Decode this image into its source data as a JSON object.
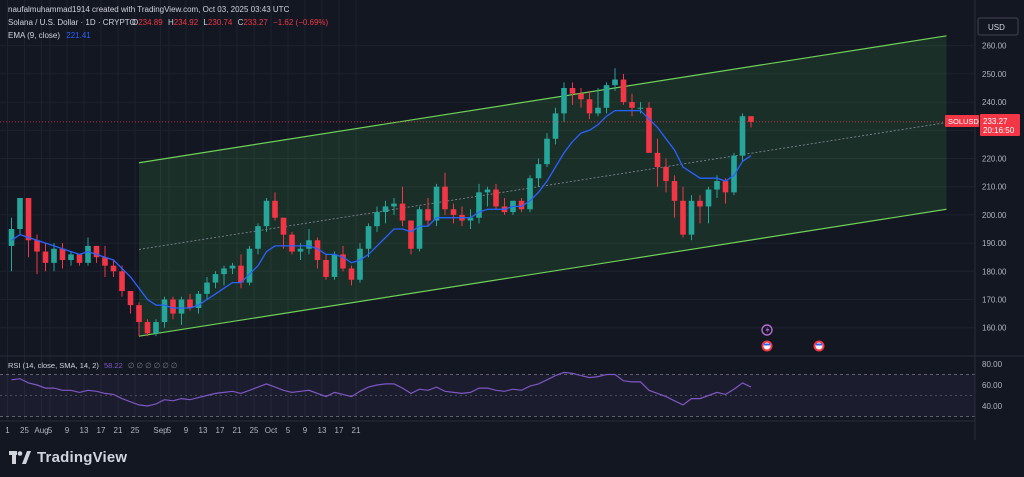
{
  "header": {
    "credit": "naufalmuhammad1914 created with TradingView.com, Oct 03, 2025 03:43 UTC",
    "symbol_line": "Solana / U.S. Dollar · 1D · CRYPTO",
    "ohlc": {
      "o_label": "O",
      "o": "234.89",
      "h_label": "H",
      "h": "234.92",
      "l_label": "L",
      "l": "230.74",
      "c_label": "C",
      "c": "233.27",
      "change": "−1.62 (−0.69%)"
    },
    "ema_label": "EMA (9, close)",
    "ema_value": "221.41",
    "currency": "USD"
  },
  "price_tag": {
    "symbol": "SOLUSD",
    "price": "233.27",
    "countdown": "20:16:50"
  },
  "rsi": {
    "label": "RSI (14, close, SMA, 14, 2)",
    "value": "58.22",
    "extra": "∅ ∅ ∅ ∅ ∅ ∅",
    "levels": [
      "80.00",
      "60.00",
      "40.00"
    ]
  },
  "footer": {
    "brand": "TradingView"
  },
  "colors": {
    "up": "#26a69a",
    "down": "#f23645",
    "ema": "#2962ff",
    "channel": "#6fd158",
    "rsi": "#7e57c2"
  },
  "chart_data": {
    "type": "candlestick",
    "y_ticks": [
      "260.00",
      "250.00",
      "240.00",
      "230.00",
      "220.00",
      "210.00",
      "200.00",
      "190.00",
      "180.00",
      "170.00",
      "160.00"
    ],
    "ylim": [
      152,
      264
    ],
    "x_ticks": [
      {
        "i": 0,
        "label": "1"
      },
      {
        "i": 2,
        "label": "25"
      },
      {
        "i": 4,
        "label": "Aug"
      },
      {
        "i": 5,
        "label": "5"
      },
      {
        "i": 7,
        "label": "9"
      },
      {
        "i": 9,
        "label": "13"
      },
      {
        "i": 11,
        "label": "17"
      },
      {
        "i": 13,
        "label": "21"
      },
      {
        "i": 15,
        "label": "25"
      },
      {
        "i": 18,
        "label": "Sep"
      },
      {
        "i": 19,
        "label": "5"
      },
      {
        "i": 21,
        "label": "9"
      },
      {
        "i": 23,
        "label": "13"
      },
      {
        "i": 25,
        "label": "17"
      },
      {
        "i": 27,
        "label": "21"
      },
      {
        "i": 29,
        "label": "25"
      },
      {
        "i": 31,
        "label": "Oct"
      },
      {
        "i": 33,
        "label": "5"
      },
      {
        "i": 35,
        "label": "9"
      },
      {
        "i": 37,
        "label": "13"
      },
      {
        "i": 39,
        "label": "17"
      },
      {
        "i": 41,
        "label": "21"
      }
    ],
    "candles": [
      {
        "o": 189,
        "h": 199,
        "l": 180,
        "c": 195
      },
      {
        "o": 195,
        "h": 206,
        "l": 193,
        "c": 206
      },
      {
        "o": 206,
        "h": 206,
        "l": 185,
        "c": 191
      },
      {
        "o": 191,
        "h": 193,
        "l": 179,
        "c": 187
      },
      {
        "o": 187,
        "h": 190,
        "l": 180,
        "c": 183
      },
      {
        "o": 183,
        "h": 190,
        "l": 180,
        "c": 188
      },
      {
        "o": 188,
        "h": 190,
        "l": 181,
        "c": 184
      },
      {
        "o": 184,
        "h": 187,
        "l": 182,
        "c": 186
      },
      {
        "o": 186,
        "h": 186,
        "l": 182,
        "c": 183
      },
      {
        "o": 183,
        "h": 192,
        "l": 182,
        "c": 189
      },
      {
        "o": 189,
        "h": 189,
        "l": 183,
        "c": 185
      },
      {
        "o": 185,
        "h": 189,
        "l": 178,
        "c": 182
      },
      {
        "o": 182,
        "h": 184,
        "l": 178,
        "c": 180
      },
      {
        "o": 180,
        "h": 182,
        "l": 171,
        "c": 173
      },
      {
        "o": 173,
        "h": 173,
        "l": 165,
        "c": 168
      },
      {
        "o": 168,
        "h": 169,
        "l": 157,
        "c": 162
      },
      {
        "o": 162,
        "h": 163,
        "l": 157,
        "c": 158
      },
      {
        "o": 158,
        "h": 163,
        "l": 157,
        "c": 162
      },
      {
        "o": 162,
        "h": 171,
        "l": 160,
        "c": 170
      },
      {
        "o": 170,
        "h": 171,
        "l": 163,
        "c": 165
      },
      {
        "o": 165,
        "h": 171,
        "l": 161,
        "c": 170
      },
      {
        "o": 170,
        "h": 172,
        "l": 166,
        "c": 167
      },
      {
        "o": 167,
        "h": 173,
        "l": 165,
        "c": 172
      },
      {
        "o": 172,
        "h": 178,
        "l": 170,
        "c": 176
      },
      {
        "o": 176,
        "h": 180,
        "l": 174,
        "c": 179
      },
      {
        "o": 179,
        "h": 182,
        "l": 175,
        "c": 181
      },
      {
        "o": 181,
        "h": 183,
        "l": 179,
        "c": 182
      },
      {
        "o": 182,
        "h": 186,
        "l": 174,
        "c": 176
      },
      {
        "o": 176,
        "h": 189,
        "l": 175,
        "c": 188
      },
      {
        "o": 188,
        "h": 197,
        "l": 186,
        "c": 196
      },
      {
        "o": 196,
        "h": 206,
        "l": 194,
        "c": 205
      },
      {
        "o": 205,
        "h": 208,
        "l": 198,
        "c": 199
      },
      {
        "o": 199,
        "h": 199,
        "l": 188,
        "c": 193
      },
      {
        "o": 193,
        "h": 194,
        "l": 186,
        "c": 187
      },
      {
        "o": 187,
        "h": 190,
        "l": 184,
        "c": 188
      },
      {
        "o": 188,
        "h": 195,
        "l": 186,
        "c": 191
      },
      {
        "o": 191,
        "h": 192,
        "l": 181,
        "c": 184
      },
      {
        "o": 184,
        "h": 186,
        "l": 177,
        "c": 178
      },
      {
        "o": 178,
        "h": 187,
        "l": 177,
        "c": 186
      },
      {
        "o": 186,
        "h": 189,
        "l": 180,
        "c": 181
      },
      {
        "o": 181,
        "h": 182,
        "l": 175,
        "c": 177
      },
      {
        "o": 177,
        "h": 190,
        "l": 176,
        "c": 188
      },
      {
        "o": 188,
        "h": 197,
        "l": 185,
        "c": 196
      },
      {
        "o": 196,
        "h": 203,
        "l": 194,
        "c": 201
      },
      {
        "o": 201,
        "h": 205,
        "l": 197,
        "c": 203
      },
      {
        "o": 203,
        "h": 206,
        "l": 200,
        "c": 204
      },
      {
        "o": 204,
        "h": 210,
        "l": 196,
        "c": 198
      },
      {
        "o": 198,
        "h": 198,
        "l": 186,
        "c": 188
      },
      {
        "o": 188,
        "h": 203,
        "l": 187,
        "c": 202
      },
      {
        "o": 202,
        "h": 206,
        "l": 196,
        "c": 198
      },
      {
        "o": 198,
        "h": 211,
        "l": 196,
        "c": 210
      },
      {
        "o": 210,
        "h": 215,
        "l": 200,
        "c": 202
      },
      {
        "o": 202,
        "h": 204,
        "l": 197,
        "c": 200
      },
      {
        "o": 200,
        "h": 203,
        "l": 196,
        "c": 198
      },
      {
        "o": 198,
        "h": 202,
        "l": 195,
        "c": 199
      },
      {
        "o": 199,
        "h": 211,
        "l": 197,
        "c": 208
      },
      {
        "o": 208,
        "h": 210,
        "l": 203,
        "c": 209
      },
      {
        "o": 209,
        "h": 211,
        "l": 202,
        "c": 203
      },
      {
        "o": 203,
        "h": 206,
        "l": 200,
        "c": 201
      },
      {
        "o": 201,
        "h": 205,
        "l": 200,
        "c": 205
      },
      {
        "o": 205,
        "h": 206,
        "l": 201,
        "c": 202
      },
      {
        "o": 202,
        "h": 214,
        "l": 201,
        "c": 213
      },
      {
        "o": 213,
        "h": 220,
        "l": 210,
        "c": 218
      },
      {
        "o": 218,
        "h": 229,
        "l": 217,
        "c": 227
      },
      {
        "o": 227,
        "h": 238,
        "l": 225,
        "c": 236
      },
      {
        "o": 236,
        "h": 247,
        "l": 233,
        "c": 245
      },
      {
        "o": 245,
        "h": 247,
        "l": 239,
        "c": 243
      },
      {
        "o": 243,
        "h": 245,
        "l": 238,
        "c": 241
      },
      {
        "o": 241,
        "h": 244,
        "l": 234,
        "c": 236
      },
      {
        "o": 236,
        "h": 245,
        "l": 235,
        "c": 238
      },
      {
        "o": 238,
        "h": 247,
        "l": 236,
        "c": 246
      },
      {
        "o": 246,
        "h": 252,
        "l": 244,
        "c": 248
      },
      {
        "o": 248,
        "h": 250,
        "l": 239,
        "c": 240
      },
      {
        "o": 240,
        "h": 243,
        "l": 235,
        "c": 238
      },
      {
        "o": 238,
        "h": 240,
        "l": 236,
        "c": 238
      },
      {
        "o": 238,
        "h": 240,
        "l": 223,
        "c": 222
      },
      {
        "o": 222,
        "h": 227,
        "l": 210,
        "c": 217
      },
      {
        "o": 217,
        "h": 220,
        "l": 208,
        "c": 212
      },
      {
        "o": 212,
        "h": 214,
        "l": 199,
        "c": 205
      },
      {
        "o": 205,
        "h": 210,
        "l": 192,
        "c": 193
      },
      {
        "o": 193,
        "h": 207,
        "l": 191,
        "c": 205
      },
      {
        "o": 205,
        "h": 207,
        "l": 197,
        "c": 203
      },
      {
        "o": 203,
        "h": 210,
        "l": 197,
        "c": 209
      },
      {
        "o": 209,
        "h": 214,
        "l": 206,
        "c": 212
      },
      {
        "o": 212,
        "h": 213,
        "l": 204,
        "c": 208
      },
      {
        "o": 208,
        "h": 222,
        "l": 207,
        "c": 221
      },
      {
        "o": 221,
        "h": 236,
        "l": 219,
        "c": 235
      },
      {
        "o": 235,
        "h": 235,
        "l": 231,
        "c": 233
      }
    ],
    "ema": [
      191,
      193,
      192,
      191,
      190,
      189,
      188,
      187,
      186,
      187,
      186,
      185,
      184,
      181,
      178,
      174,
      170,
      168,
      168,
      167,
      167,
      167,
      168,
      170,
      172,
      174,
      176,
      176,
      179,
      182,
      187,
      189,
      189,
      189,
      189,
      189,
      188,
      186,
      186,
      185,
      183,
      184,
      186,
      189,
      192,
      195,
      195,
      194,
      196,
      196,
      199,
      199,
      199,
      199,
      199,
      201,
      202,
      202,
      202,
      203,
      203,
      205,
      208,
      212,
      217,
      222,
      226,
      229,
      230,
      232,
      235,
      237,
      237,
      237,
      237,
      234,
      231,
      227,
      223,
      217,
      215,
      213,
      213,
      213,
      212,
      214,
      219,
      221
    ],
    "channel": {
      "start_index": 15,
      "end_index": 110,
      "upper": [
        218.5,
        263.5
      ],
      "lower": [
        157.0,
        202.0
      ]
    },
    "rsi_ylim": [
      30,
      80
    ],
    "rsi_values": [
      65,
      66,
      62,
      60,
      57,
      57,
      55,
      55,
      53,
      55,
      54,
      52,
      51,
      47,
      44,
      41,
      40,
      42,
      46,
      45,
      47,
      46,
      48,
      50,
      52,
      53,
      54,
      52,
      55,
      58,
      61,
      58,
      55,
      53,
      54,
      55,
      52,
      49,
      53,
      51,
      49,
      54,
      58,
      60,
      61,
      61,
      57,
      52,
      56,
      55,
      58,
      54,
      53,
      52,
      53,
      57,
      57,
      55,
      54,
      56,
      55,
      59,
      61,
      65,
      69,
      72,
      71,
      69,
      67,
      68,
      70,
      70,
      64,
      63,
      63,
      55,
      52,
      49,
      45,
      41,
      47,
      47,
      50,
      53,
      51,
      56,
      62,
      58
    ]
  }
}
